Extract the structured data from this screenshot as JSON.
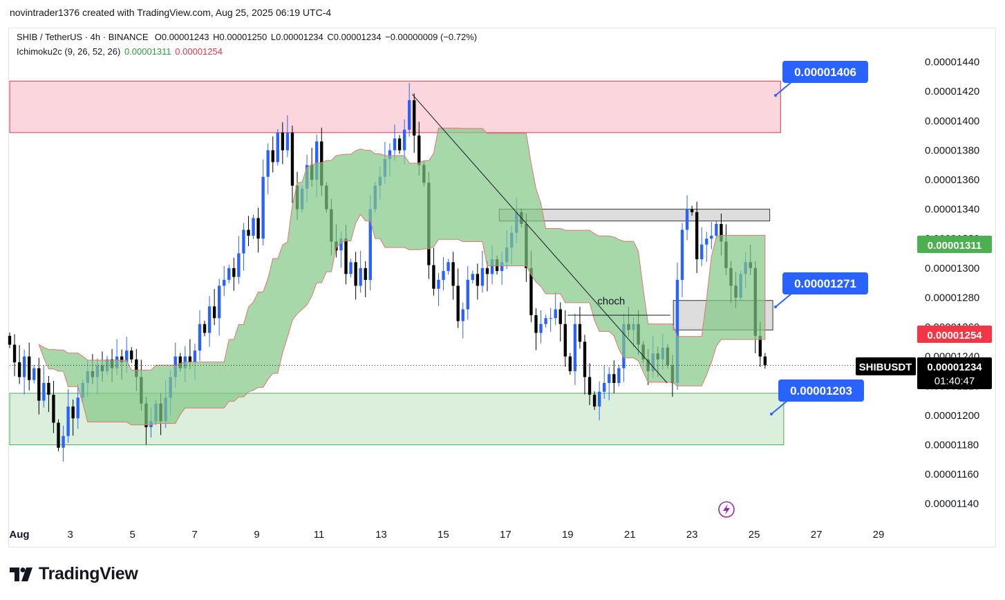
{
  "credit": "novintrader1376 created with TradingView.com, Aug 25, 2025 06:19 UTC-4",
  "legend": {
    "symbol_line": "SHIB / TetherUS · 4h · BINANCE",
    "open": "O0.00001243",
    "high": "H0.00001250",
    "low": "L0.00001234",
    "close": "C0.00001234",
    "change": "−0.00000009 (−0.72%)",
    "indicator": "Ichimoku2c (9, 26, 52, 26)",
    "ind_val1": "0.00001311",
    "ind_val2": "0.00001254"
  },
  "branding": {
    "logo_text": "TradingView"
  },
  "colors": {
    "bull": "#2962ff",
    "bear": "#000000",
    "cloud": "#81c784",
    "cloud_edge": "#e57373",
    "supply_zone": "#f8bbc5",
    "demand_zone": "#c8e6c9",
    "callout": "#2962ff",
    "price_label": "#000000",
    "ind_green": "#4caf50",
    "ind_red": "#f23645"
  },
  "chart_data": {
    "type": "candlestick",
    "symbol": "SHIBUSDT",
    "interval": "4h",
    "exchange": "BINANCE",
    "ylim": [
      1.13e-05,
      1.46e-05
    ],
    "y_ticks": [
      "0.00001140",
      "0.00001160",
      "0.00001180",
      "0.00001200",
      "0.00001220",
      "0.00001240",
      "0.00001260",
      "0.00001280",
      "0.00001300",
      "0.00001320",
      "0.00001340",
      "0.00001360",
      "0.00001380",
      "0.00001400",
      "0.00001420",
      "0.00001440"
    ],
    "x_ticks": [
      "Aug",
      "3",
      "5",
      "7",
      "9",
      "11",
      "13",
      "15",
      "17",
      "19",
      "21",
      "23",
      "25",
      "27",
      "29"
    ],
    "x_tick_days": [
      1,
      3,
      5,
      7,
      9,
      11,
      13,
      15,
      17,
      19,
      21,
      23,
      25,
      27,
      29
    ],
    "x_range_days": [
      1.05,
      30.2
    ],
    "candles_close": [
      1.248e-05,
      1.236e-05,
      1.226e-05,
      1.24e-05,
      1.224e-05,
      1.232e-05,
      1.21e-05,
      1.222e-05,
      1.214e-05,
      1.195e-05,
      1.178e-05,
      1.186e-05,
      1.206e-05,
      1.198e-05,
      1.212e-05,
      1.222e-05,
      1.23e-05,
      1.226e-05,
      1.234e-05,
      1.23e-05,
      1.238e-05,
      1.232e-05,
      1.24e-05,
      1.236e-05,
      1.244e-05,
      1.238e-05,
      1.226e-05,
      1.208e-05,
      1.192e-05,
      1.196e-05,
      1.208e-05,
      1.196e-05,
      1.212e-05,
      1.226e-05,
      1.24e-05,
      1.232e-05,
      1.24e-05,
      1.236e-05,
      1.244e-05,
      1.262e-05,
      1.256e-05,
      1.274e-05,
      1.266e-05,
      1.288e-05,
      1.292e-05,
      1.3e-05,
      1.294e-05,
      1.31e-05,
      1.326e-05,
      1.322e-05,
      1.334e-05,
      1.32e-05,
      1.362e-05,
      1.38e-05,
      1.372e-05,
      1.392e-05,
      1.38e-05,
      1.392e-05,
      1.356e-05,
      1.34e-05,
      1.354e-05,
      1.37e-05,
      1.36e-05,
      1.386e-05,
      1.356e-05,
      1.34e-05,
      1.318e-05,
      1.312e-05,
      1.32e-05,
      1.296e-05,
      1.304e-05,
      1.288e-05,
      1.3e-05,
      1.292e-05,
      1.34e-05,
      1.356e-05,
      1.362e-05,
      1.374e-05,
      1.38e-05,
      1.388e-05,
      1.38e-05,
      1.394e-05,
      1.414e-05,
      1.39e-05,
      1.37e-05,
      1.358e-05,
      1.302e-05,
      1.286e-05,
      1.292e-05,
      1.298e-05,
      1.304e-05,
      1.288e-05,
      1.264e-05,
      1.272e-05,
      1.292e-05,
      1.296e-05,
      1.288e-05,
      1.3e-05,
      1.296e-05,
      1.306e-05,
      1.298e-05,
      1.304e-05,
      1.314e-05,
      1.324e-05,
      1.338e-05,
      1.33e-05,
      1.3e-05,
      1.268e-05,
      1.256e-05,
      1.262e-05,
      1.266e-05,
      1.266e-05,
      1.272e-05,
      1.262e-05,
      1.24e-05,
      1.23e-05,
      1.262e-05,
      1.25e-05,
      1.226e-05,
      1.214e-05,
      1.206e-05,
      1.216e-05,
      1.222e-05,
      1.228e-05,
      1.222e-05,
      1.232e-05,
      1.262e-05,
      1.258e-05,
      1.262e-05,
      1.248e-05,
      1.238e-05,
      1.23e-05,
      1.242e-05,
      1.238e-05,
      1.246e-05,
      1.234e-05,
      1.222e-05,
      1.292e-05,
      1.326e-05,
      1.34e-05,
      1.338e-05,
      1.306e-05,
      1.316e-05,
      1.32e-05,
      1.322e-05,
      1.33e-05,
      1.318e-05,
      1.3e-05,
      1.288e-05,
      1.28e-05,
      1.296e-05,
      1.304e-05,
      1.3e-05,
      1.254e-05,
      1.24e-05,
      1.234e-05
    ],
    "series": [
      {
        "name": "Ichimoku2c (9, 26, 52, 26)",
        "values": [
          1.311e-05,
          1.254e-05
        ]
      }
    ],
    "zones": [
      {
        "kind": "supply",
        "from_day": 1.05,
        "to_day": 25.85,
        "low": 1.392e-05,
        "high": 1.427e-05
      },
      {
        "kind": "demand",
        "from_day": 1.05,
        "to_day": 25.95,
        "low": 1.18e-05,
        "high": 1.215e-05
      },
      {
        "kind": "resistance",
        "from_day": 16.8,
        "to_day": 25.5,
        "low": 1.332e-05,
        "high": 1.34e-05
      },
      {
        "kind": "resistance",
        "from_day": 22.4,
        "to_day": 25.6,
        "low": 1.258e-05,
        "high": 1.278e-05
      }
    ],
    "annotations": [
      {
        "text": "choch",
        "day": 20.4,
        "price": 1.272e-05
      }
    ],
    "callouts": [
      "0.00001406",
      "0.00001271",
      "0.00001203"
    ],
    "price_labels": {
      "ichimoku_a": "0.00001311",
      "ichimoku_b": "0.00001254",
      "symbol": "SHIBUSDT",
      "last": "0.00001234",
      "countdown": "01:40:47"
    }
  }
}
